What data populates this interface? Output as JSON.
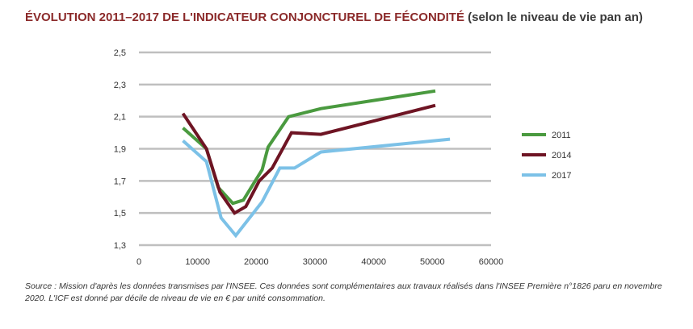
{
  "title": {
    "main": "ÉVOLUTION 2011–2017 DE L'INDICATEUR CONJONCTUREL DE FÉCONDITÉ",
    "sub": " (selon le niveau de vie pan an)"
  },
  "source": "Source : Mission d'après les données transmises par l'INSEE. Ces données sont complémentaires aux travaux réalisés dans l'INSEE Première n°1826 paru en novembre 2020. L'ICF est donné par décile de niveau de vie en € par unité consommation.",
  "chart_data": {
    "type": "line",
    "xlim": [
      0,
      60000
    ],
    "ylim": [
      1.3,
      2.5
    ],
    "x_ticks": [
      0,
      10000,
      20000,
      30000,
      40000,
      50000,
      60000
    ],
    "x_tick_labels": [
      "0",
      "10000",
      "20000",
      "30000",
      "40000",
      "50000",
      "60000"
    ],
    "y_ticks": [
      1.3,
      1.5,
      1.7,
      1.9,
      2.1,
      2.3,
      2.5
    ],
    "y_tick_labels": [
      "1,3",
      "1,5",
      "1,7",
      "1,9",
      "2,1",
      "2,3",
      "2,5"
    ],
    "grid": "horizontal",
    "legend_position": "right",
    "series": [
      {
        "name": "2011",
        "color": "#4a9a3f",
        "points": [
          [
            7500,
            2.03
          ],
          [
            11500,
            1.9
          ],
          [
            13500,
            1.66
          ],
          [
            16000,
            1.56
          ],
          [
            17800,
            1.58
          ],
          [
            21000,
            1.77
          ],
          [
            22000,
            1.91
          ],
          [
            25500,
            2.1
          ],
          [
            31000,
            2.15
          ],
          [
            50500,
            2.26
          ]
        ]
      },
      {
        "name": "2014",
        "color": "#6e1423",
        "points": [
          [
            7500,
            2.12
          ],
          [
            11500,
            1.9
          ],
          [
            13800,
            1.63
          ],
          [
            16300,
            1.5
          ],
          [
            18200,
            1.54
          ],
          [
            20500,
            1.7
          ],
          [
            22700,
            1.78
          ],
          [
            26000,
            2.0
          ],
          [
            31000,
            1.99
          ],
          [
            50500,
            2.17
          ]
        ]
      },
      {
        "name": "2017",
        "color": "#7cc1e7",
        "points": [
          [
            7500,
            1.95
          ],
          [
            11500,
            1.82
          ],
          [
            14000,
            1.47
          ],
          [
            16500,
            1.36
          ],
          [
            21000,
            1.57
          ],
          [
            24000,
            1.78
          ],
          [
            26500,
            1.78
          ],
          [
            31000,
            1.88
          ],
          [
            53000,
            1.96
          ]
        ]
      }
    ]
  }
}
